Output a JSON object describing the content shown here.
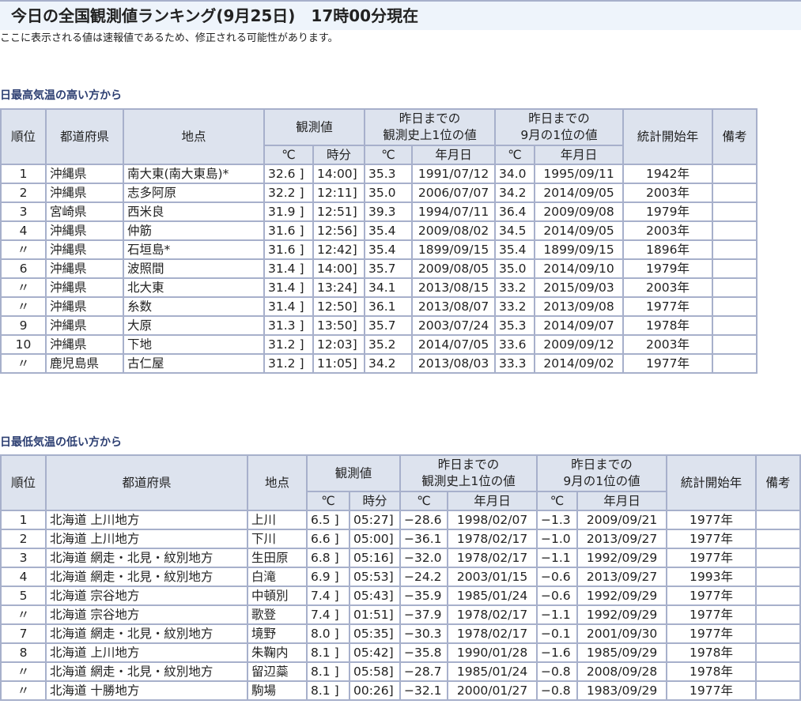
{
  "title": "今日の全国観測値ランキング(9月25日)　17時00分現在",
  "note": "ここに表示される値は速報値であるため、修正される可能性があります。",
  "headers": {
    "rank": "順位",
    "pref": "都道府県",
    "station": "地点",
    "obs": "観測値",
    "record": "昨日までの\n観測史上1位の値",
    "month": "昨日までの\n9月の1位の値",
    "start": "統計開始年",
    "remarks": "備考",
    "deg": "℃",
    "time": "時分",
    "date": "年月日"
  },
  "high": {
    "heading": "日最高気温の高い方から",
    "rows": [
      [
        "1",
        "沖縄県",
        "南大東(南大東島)*",
        "32.6 ]",
        "14:00]",
        "35.3",
        "1991/07/12",
        "34.0",
        "1995/09/11",
        "1942年",
        ""
      ],
      [
        "2",
        "沖縄県",
        "志多阿原",
        "32.2 ]",
        "12:11]",
        "35.0",
        "2006/07/07",
        "34.2",
        "2014/09/05",
        "2003年",
        ""
      ],
      [
        "3",
        "宮崎県",
        "西米良",
        "31.9 ]",
        "12:51]",
        "39.3",
        "1994/07/11",
        "36.4",
        "2009/09/08",
        "1979年",
        ""
      ],
      [
        "4",
        "沖縄県",
        "仲筋",
        "31.6 ]",
        "12:56]",
        "35.4",
        "2009/08/02",
        "34.5",
        "2014/09/05",
        "2003年",
        ""
      ],
      [
        "〃",
        "沖縄県",
        "石垣島*",
        "31.6 ]",
        "12:42]",
        "35.4",
        "1899/09/15",
        "35.4",
        "1899/09/15",
        "1896年",
        ""
      ],
      [
        "6",
        "沖縄県",
        "波照間",
        "31.4 ]",
        "14:00]",
        "35.7",
        "2009/08/05",
        "35.0",
        "2014/09/10",
        "1979年",
        ""
      ],
      [
        "〃",
        "沖縄県",
        "北大東",
        "31.4 ]",
        "13:24]",
        "34.1",
        "2013/08/15",
        "33.2",
        "2015/09/03",
        "2003年",
        ""
      ],
      [
        "〃",
        "沖縄県",
        "糸数",
        "31.4 ]",
        "12:50]",
        "36.1",
        "2013/08/07",
        "33.2",
        "2013/09/08",
        "1977年",
        ""
      ],
      [
        "9",
        "沖縄県",
        "大原",
        "31.3 ]",
        "13:50]",
        "35.7",
        "2003/07/24",
        "35.3",
        "2014/09/07",
        "1978年",
        ""
      ],
      [
        "10",
        "沖縄県",
        "下地",
        "31.2 ]",
        "12:03]",
        "35.2",
        "2014/07/05",
        "33.6",
        "2009/09/12",
        "2003年",
        ""
      ],
      [
        "〃",
        "鹿児島県",
        "古仁屋",
        "31.2 ]",
        "11:05]",
        "34.2",
        "2013/08/03",
        "33.3",
        "2014/09/02",
        "1977年",
        ""
      ]
    ]
  },
  "low": {
    "heading": "日最低気温の低い方から",
    "rows": [
      [
        "1",
        "北海道 上川地方",
        "上川",
        "6.5 ]",
        "05:27]",
        "−28.6",
        "1998/02/07",
        "−1.3",
        "2009/09/21",
        "1977年",
        ""
      ],
      [
        "2",
        "北海道 上川地方",
        "下川",
        "6.6 ]",
        "05:00]",
        "−36.1",
        "1978/02/17",
        "−1.0",
        "2013/09/27",
        "1977年",
        ""
      ],
      [
        "3",
        "北海道 網走・北見・紋別地方",
        "生田原",
        "6.8 ]",
        "05:16]",
        "−32.0",
        "1978/02/17",
        "−1.1",
        "1992/09/29",
        "1977年",
        ""
      ],
      [
        "4",
        "北海道 網走・北見・紋別地方",
        "白滝",
        "6.9 ]",
        "05:53]",
        "−24.2",
        "2003/01/15",
        "−0.6",
        "2013/09/27",
        "1993年",
        ""
      ],
      [
        "5",
        "北海道 宗谷地方",
        "中頓別",
        "7.4 ]",
        "05:43]",
        "−35.9",
        "1985/01/24",
        "−0.6",
        "1992/09/29",
        "1977年",
        ""
      ],
      [
        "〃",
        "北海道 宗谷地方",
        "歌登",
        "7.4 ]",
        "01:51]",
        "−37.9",
        "1978/02/17",
        "−1.1",
        "1992/09/29",
        "1977年",
        ""
      ],
      [
        "7",
        "北海道 網走・北見・紋別地方",
        "境野",
        "8.0 ]",
        "05:35]",
        "−30.3",
        "1978/02/17",
        "−0.1",
        "2001/09/30",
        "1977年",
        ""
      ],
      [
        "8",
        "北海道 上川地方",
        "朱鞠内",
        "8.1 ]",
        "05:42]",
        "−35.8",
        "1990/01/28",
        "−1.6",
        "1985/09/29",
        "1978年",
        ""
      ],
      [
        "〃",
        "北海道 網走・北見・紋別地方",
        "留辺蘂",
        "8.1 ]",
        "05:58]",
        "−28.7",
        "1985/01/24",
        "−0.8",
        "2008/09/28",
        "1978年",
        ""
      ],
      [
        "〃",
        "北海道 十勝地方",
        "駒場",
        "8.1 ]",
        "00:26]",
        "−32.1",
        "2000/01/27",
        "−0.8",
        "1983/09/29",
        "1977年",
        ""
      ]
    ]
  }
}
